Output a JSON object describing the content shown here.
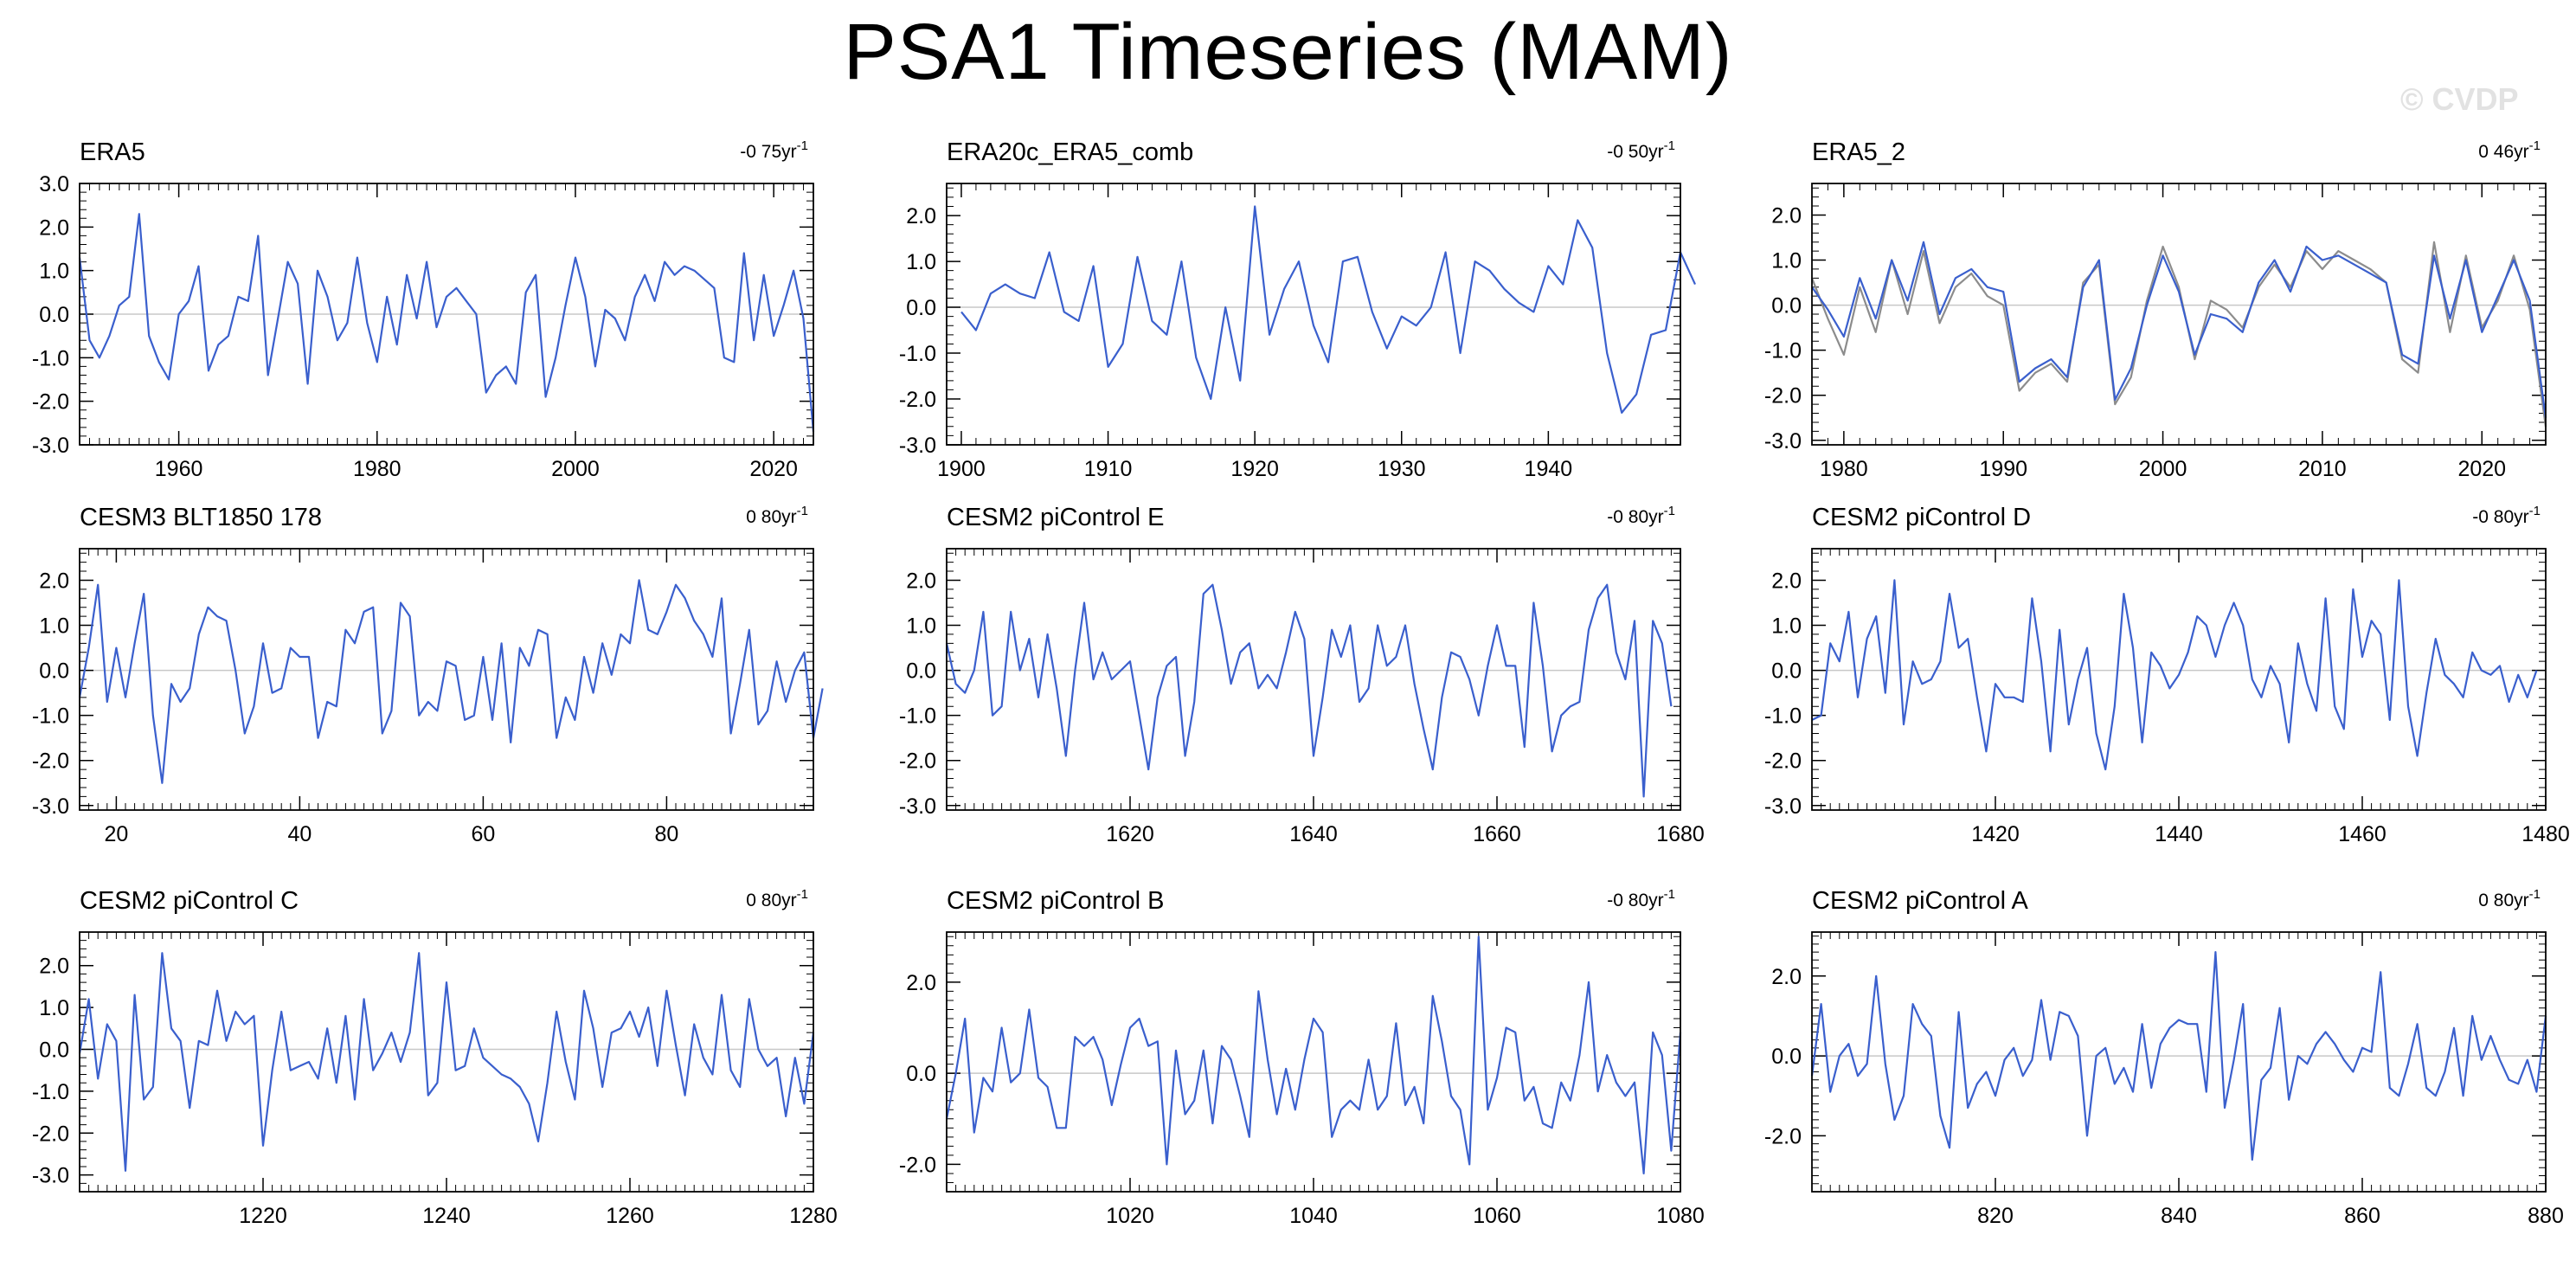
{
  "title": "PSA1 Timeseries (MAM)",
  "watermark": "© CVDP",
  "colors": {
    "series": "#3a5fcd",
    "series2": "#8c8c8c",
    "zero_line": "#c8c8c8",
    "axis": "#000000"
  },
  "chart_data": [
    {
      "type": "line",
      "title": "ERA5",
      "trend": "-0 75yr",
      "trend_exp": "-1",
      "xlim": [
        1950,
        2024
      ],
      "ylim": [
        -3,
        3
      ],
      "yticks": [
        3,
        2,
        1,
        0,
        -1,
        -2,
        -3
      ],
      "ytick_labels": [
        "3.0",
        "2.0",
        "1.0",
        "0.0",
        "-1.0",
        "-2.0",
        "-3.0"
      ],
      "xticks": [
        1960,
        1980,
        2000,
        2020
      ],
      "x_start": 1950,
      "x_step": 1,
      "series": [
        {
          "values": [
            1.3,
            -0.6,
            -1.0,
            -0.5,
            0.2,
            0.4,
            2.3,
            -0.5,
            -1.1,
            -1.5,
            0.0,
            0.3,
            1.1,
            -1.3,
            -0.7,
            -0.5,
            0.4,
            0.3,
            1.8,
            -1.4,
            -0.1,
            1.2,
            0.7,
            -1.6,
            1.0,
            0.4,
            -0.6,
            -0.2,
            1.3,
            -0.2,
            -1.1,
            0.4,
            -0.7,
            0.9,
            -0.1,
            1.2,
            -0.3,
            0.4,
            0.6,
            0.3,
            0.0,
            -1.8,
            -1.4,
            -1.2,
            -1.6,
            0.5,
            0.9,
            -1.9,
            -1.0,
            0.2,
            1.3,
            0.4,
            -1.2,
            0.1,
            -0.1,
            -0.6,
            0.4,
            0.9,
            0.3,
            1.2,
            0.9,
            1.1,
            1.0,
            0.8,
            0.6,
            -1.0,
            -1.1,
            1.4,
            -0.6,
            0.9,
            -0.5,
            0.2,
            1.0,
            -0.1,
            -2.7
          ]
        }
      ]
    },
    {
      "type": "line",
      "title": "ERA20c_ERA5_comb",
      "trend": "-0 50yr",
      "trend_exp": "-1",
      "xlim": [
        1899,
        1949
      ],
      "ylim": [
        -3,
        2.7
      ],
      "yticks": [
        2,
        1,
        0,
        -1,
        -2,
        -3
      ],
      "ytick_labels": [
        "2.0",
        "1.0",
        "0.0",
        "-1.0",
        "-2.0",
        "-3.0"
      ],
      "xticks": [
        1900,
        1910,
        1920,
        1930,
        1940
      ],
      "x_start": 1900,
      "x_step": 1,
      "series": [
        {
          "values": [
            -0.1,
            -0.5,
            0.3,
            0.5,
            0.3,
            0.2,
            1.2,
            -0.1,
            -0.3,
            0.9,
            -1.3,
            -0.8,
            1.1,
            -0.3,
            -0.6,
            1.0,
            -1.1,
            -2.0,
            0.0,
            -1.6,
            2.2,
            -0.6,
            0.4,
            1.0,
            -0.4,
            -1.2,
            1.0,
            1.1,
            -0.1,
            -0.9,
            -0.2,
            -0.4,
            0.0,
            1.2,
            -1.0,
            1.0,
            0.8,
            0.4,
            0.1,
            -0.1,
            0.9,
            0.5,
            1.9,
            1.3,
            -1.0,
            -2.3,
            -1.9,
            -0.6,
            -0.5,
            1.2,
            0.5
          ]
        }
      ]
    },
    {
      "type": "line",
      "title": "ERA5_2",
      "trend": "0 46yr",
      "trend_exp": "-1",
      "xlim": [
        1978,
        2024
      ],
      "ylim": [
        -3.1,
        2.7
      ],
      "yticks": [
        2,
        1,
        0,
        -1,
        -2,
        -3
      ],
      "ytick_labels": [
        "2.0",
        "1.0",
        "0.0",
        "-1.0",
        "-2.0",
        "-3.0"
      ],
      "xticks": [
        1980,
        1990,
        2000,
        2010,
        2020
      ],
      "x_start": 1978,
      "x_step": 1,
      "series": [
        {
          "values": [
            0.4,
            -0.1,
            -0.7,
            0.6,
            -0.3,
            1.0,
            0.1,
            1.4,
            -0.2,
            0.6,
            0.8,
            0.4,
            0.3,
            -1.7,
            -1.4,
            -1.2,
            -1.6,
            0.4,
            1.0,
            -2.1,
            -1.4,
            0.0,
            1.1,
            0.3,
            -1.1,
            -0.2,
            -0.3,
            -0.6,
            0.5,
            1.0,
            0.3,
            1.3,
            1.0,
            1.1,
            0.9,
            0.7,
            0.5,
            -1.1,
            -1.3,
            1.1,
            -0.3,
            1.0,
            -0.6,
            0.2,
            1.0,
            0.1,
            -2.5
          ]
        },
        {
          "values": [
            0.6,
            -0.3,
            -1.1,
            0.4,
            -0.6,
            1.0,
            -0.2,
            1.2,
            -0.4,
            0.4,
            0.7,
            0.2,
            0.0,
            -1.9,
            -1.5,
            -1.3,
            -1.7,
            0.5,
            0.9,
            -2.2,
            -1.6,
            0.1,
            1.3,
            0.4,
            -1.2,
            0.1,
            -0.1,
            -0.5,
            0.4,
            0.9,
            0.4,
            1.2,
            0.8,
            1.2,
            1.0,
            0.8,
            0.5,
            -1.2,
            -1.5,
            1.4,
            -0.6,
            1.1,
            -0.5,
            0.1,
            1.1,
            -0.1,
            -2.7
          ]
        }
      ]
    },
    {
      "type": "line",
      "title": "CESM3 BLT1850 178",
      "trend": "0 80yr",
      "trend_exp": "-1",
      "xlim": [
        16,
        96
      ],
      "ylim": [
        -3.1,
        2.7
      ],
      "yticks": [
        2,
        1,
        0,
        -1,
        -2,
        -3
      ],
      "ytick_labels": [
        "2.0",
        "1.0",
        "0.0",
        "-1.0",
        "-2.0",
        "-3.0"
      ],
      "xticks": [
        20,
        40,
        60,
        80
      ],
      "x_start": 16,
      "x_step": 1,
      "series": [
        {
          "values": [
            -0.6,
            0.5,
            1.9,
            -0.7,
            0.5,
            -0.6,
            0.6,
            1.7,
            -1.0,
            -2.5,
            -0.3,
            -0.7,
            -0.4,
            0.8,
            1.4,
            1.2,
            1.1,
            0.0,
            -1.4,
            -0.8,
            0.6,
            -0.5,
            -0.4,
            0.5,
            0.3,
            0.3,
            -1.5,
            -0.7,
            -0.8,
            0.9,
            0.6,
            1.3,
            1.4,
            -1.4,
            -0.9,
            1.5,
            1.2,
            -1.0,
            -0.7,
            -0.9,
            0.2,
            0.1,
            -1.1,
            -1.0,
            0.3,
            -1.1,
            0.6,
            -1.6,
            0.5,
            0.1,
            0.9,
            0.8,
            -1.5,
            -0.6,
            -1.1,
            0.3,
            -0.5,
            0.6,
            -0.1,
            0.8,
            0.6,
            2.0,
            0.9,
            0.8,
            1.3,
            1.9,
            1.6,
            1.1,
            0.8,
            0.3,
            1.6,
            -1.4,
            -0.3,
            0.9,
            -1.2,
            -0.9,
            0.2,
            -0.7,
            0.0,
            0.4,
            -1.5,
            -0.4
          ]
        }
      ]
    },
    {
      "type": "line",
      "title": "CESM2 piControl E",
      "trend": "-0 80yr",
      "trend_exp": "-1",
      "xlim": [
        1600,
        1680
      ],
      "ylim": [
        -3.1,
        2.7
      ],
      "yticks": [
        2,
        1,
        0,
        -1,
        -2,
        -3
      ],
      "ytick_labels": [
        "2.0",
        "1.0",
        "0.0",
        "-1.0",
        "-2.0",
        "-3.0"
      ],
      "xticks": [
        1620,
        1640,
        1660,
        1680
      ],
      "x_start": 1600,
      "x_step": 1,
      "series": [
        {
          "values": [
            0.6,
            -0.3,
            -0.5,
            0.0,
            1.3,
            -1.0,
            -0.8,
            1.3,
            0.0,
            0.7,
            -0.6,
            0.8,
            -0.4,
            -1.9,
            0.0,
            1.5,
            -0.2,
            0.4,
            -0.2,
            0.0,
            0.2,
            -1.0,
            -2.2,
            -0.6,
            0.1,
            0.3,
            -1.9,
            -0.7,
            1.7,
            1.9,
            0.9,
            -0.3,
            0.4,
            0.6,
            -0.4,
            -0.1,
            -0.4,
            0.4,
            1.3,
            0.7,
            -1.9,
            -0.6,
            0.9,
            0.3,
            1.0,
            -0.7,
            -0.4,
            1.0,
            0.1,
            0.3,
            1.0,
            -0.3,
            -1.3,
            -2.2,
            -0.6,
            0.4,
            0.3,
            -0.2,
            -1.0,
            0.1,
            1.0,
            0.1,
            0.1,
            -1.7,
            1.5,
            0.1,
            -1.8,
            -1.0,
            -0.8,
            -0.7,
            0.9,
            1.6,
            1.9,
            0.4,
            -0.2,
            1.1,
            -2.8,
            1.1,
            0.6,
            -0.8
          ]
        }
      ]
    },
    {
      "type": "line",
      "title": "CESM2 piControl D",
      "trend": "-0 80yr",
      "trend_exp": "-1",
      "xlim": [
        1400,
        1480
      ],
      "ylim": [
        -3.1,
        2.7
      ],
      "yticks": [
        2,
        1,
        0,
        -1,
        -2,
        -3
      ],
      "ytick_labels": [
        "2.0",
        "1.0",
        "0.0",
        "-1.0",
        "-2.0",
        "-3.0"
      ],
      "xticks": [
        1420,
        1440,
        1460,
        1480
      ],
      "x_start": 1400,
      "x_step": 1,
      "series": [
        {
          "values": [
            -1.1,
            -1.0,
            0.6,
            0.2,
            1.3,
            -0.6,
            0.7,
            1.2,
            -0.5,
            2.0,
            -1.2,
            0.2,
            -0.3,
            -0.2,
            0.2,
            1.7,
            0.5,
            0.7,
            -0.6,
            -1.8,
            -0.3,
            -0.6,
            -0.6,
            -0.7,
            1.6,
            0.2,
            -1.8,
            0.9,
            -1.2,
            -0.2,
            0.5,
            -1.4,
            -2.2,
            -0.8,
            1.7,
            0.5,
            -1.6,
            0.4,
            0.1,
            -0.4,
            -0.1,
            0.4,
            1.2,
            1.0,
            0.3,
            1.0,
            1.5,
            1.0,
            -0.2,
            -0.6,
            0.1,
            -0.3,
            -1.6,
            0.6,
            -0.3,
            -0.9,
            1.6,
            -0.8,
            -1.3,
            1.8,
            0.3,
            1.1,
            0.8,
            -1.1,
            2.0,
            -0.8,
            -1.9,
            -0.5,
            0.7,
            -0.1,
            -0.3,
            -0.6,
            0.4,
            0.0,
            -0.1,
            0.1,
            -0.7,
            -0.1,
            -0.6,
            0.0
          ]
        }
      ]
    },
    {
      "type": "line",
      "title": "CESM2 piControl C",
      "trend": "0 80yr",
      "trend_exp": "-1",
      "xlim": [
        1200,
        1280
      ],
      "ylim": [
        -3.4,
        2.8
      ],
      "yticks": [
        2,
        1,
        0,
        -1,
        -2,
        -3
      ],
      "ytick_labels": [
        "2.0",
        "1.0",
        "0.0",
        "-1.0",
        "-2.0",
        "-3.0"
      ],
      "xticks": [
        1220,
        1240,
        1260,
        1280
      ],
      "x_start": 1200,
      "x_step": 1,
      "series": [
        {
          "values": [
            -0.1,
            1.2,
            -0.7,
            0.6,
            0.2,
            -2.9,
            1.3,
            -1.2,
            -0.9,
            2.3,
            0.5,
            0.2,
            -1.4,
            0.2,
            0.1,
            1.4,
            0.2,
            0.9,
            0.6,
            0.8,
            -2.3,
            -0.5,
            0.9,
            -0.5,
            -0.4,
            -0.3,
            -0.7,
            0.5,
            -0.8,
            0.8,
            -1.2,
            1.2,
            -0.5,
            -0.1,
            0.4,
            -0.3,
            0.4,
            2.3,
            -1.1,
            -0.8,
            1.6,
            -0.5,
            -0.4,
            0.5,
            -0.2,
            -0.4,
            -0.6,
            -0.7,
            -0.9,
            -1.3,
            -2.2,
            -0.8,
            0.9,
            -0.3,
            -1.2,
            1.4,
            0.5,
            -0.9,
            0.4,
            0.5,
            0.9,
            0.3,
            1.0,
            -0.4,
            1.4,
            0.1,
            -1.1,
            0.6,
            -0.2,
            -0.6,
            1.3,
            -0.5,
            -0.9,
            1.2,
            0.0,
            -0.4,
            -0.2,
            -1.6,
            -0.2,
            -1.3,
            0.4
          ]
        }
      ]
    },
    {
      "type": "line",
      "title": "CESM2 piControl B",
      "trend": "-0 80yr",
      "trend_exp": "-1",
      "xlim": [
        1000,
        1080
      ],
      "ylim": [
        -2.6,
        3.1
      ],
      "yticks": [
        2,
        0,
        -2
      ],
      "ytick_labels": [
        "2.0",
        "0.0",
        "-2.0"
      ],
      "xticks": [
        1020,
        1040,
        1060,
        1080
      ],
      "x_start": 1000,
      "x_step": 1,
      "series": [
        {
          "values": [
            -1.0,
            0.0,
            1.2,
            -1.3,
            -0.1,
            -0.4,
            1.0,
            -0.2,
            0.0,
            1.4,
            -0.1,
            -0.3,
            -1.2,
            -1.2,
            0.8,
            0.6,
            0.8,
            0.3,
            -0.7,
            0.2,
            1.0,
            1.2,
            0.6,
            0.7,
            -2.0,
            0.5,
            -0.9,
            -0.6,
            0.5,
            -1.1,
            0.6,
            0.3,
            -0.5,
            -1.4,
            1.8,
            0.3,
            -0.9,
            0.1,
            -0.8,
            0.3,
            1.2,
            0.9,
            -1.4,
            -0.8,
            -0.6,
            -0.8,
            0.3,
            -0.8,
            -0.5,
            1.1,
            -0.7,
            -0.3,
            -1.1,
            1.7,
            0.7,
            -0.5,
            -0.8,
            -2.0,
            3.0,
            -0.8,
            -0.1,
            1.0,
            0.9,
            -0.6,
            -0.3,
            -1.1,
            -1.2,
            -0.2,
            -0.6,
            0.4,
            2.0,
            -0.4,
            0.4,
            -0.2,
            -0.5,
            -0.2,
            -2.2,
            0.9,
            0.4,
            -1.7,
            0.9
          ]
        }
      ]
    },
    {
      "type": "line",
      "title": "CESM2 piControl A",
      "trend": "0 80yr",
      "trend_exp": "-1",
      "xlim": [
        800,
        880
      ],
      "ylim": [
        -3.4,
        3.1
      ],
      "yticks": [
        2,
        0,
        -2
      ],
      "ytick_labels": [
        "2.0",
        "0.0",
        "-2.0"
      ],
      "xticks": [
        820,
        840,
        860,
        880
      ],
      "x_start": 800,
      "x_step": 1,
      "series": [
        {
          "values": [
            -0.5,
            1.3,
            -0.9,
            0.0,
            0.3,
            -0.5,
            -0.2,
            2.0,
            -0.2,
            -1.6,
            -1.0,
            1.3,
            0.8,
            0.5,
            -1.5,
            -2.3,
            1.1,
            -1.3,
            -0.7,
            -0.4,
            -1.0,
            -0.1,
            0.2,
            -0.5,
            -0.1,
            1.4,
            -0.1,
            1.1,
            1.0,
            0.5,
            -2.0,
            0.0,
            0.2,
            -0.7,
            -0.3,
            -0.9,
            0.8,
            -0.8,
            0.3,
            0.7,
            0.9,
            0.8,
            0.8,
            -0.9,
            2.6,
            -1.3,
            -0.1,
            1.3,
            -2.6,
            -0.6,
            -0.3,
            1.2,
            -1.1,
            0.0,
            -0.2,
            0.3,
            0.6,
            0.3,
            -0.1,
            -0.4,
            0.2,
            0.1,
            2.1,
            -0.8,
            -1.0,
            -0.2,
            0.8,
            -0.8,
            -1.0,
            -0.4,
            0.7,
            -1.0,
            1.0,
            -0.1,
            0.5,
            -0.1,
            -0.6,
            -0.7,
            -0.1,
            -0.9,
            1.0
          ]
        }
      ]
    }
  ]
}
